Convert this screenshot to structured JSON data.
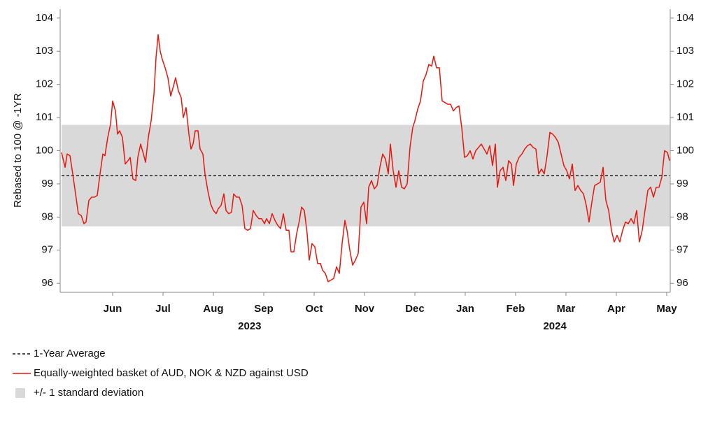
{
  "chart_data": {
    "type": "line",
    "ylabel": "Rebased to 100 @ -1YR",
    "x": [
      -0.514,
      -0.444,
      -0.403,
      -0.347,
      -0.292,
      -0.236,
      -0.181,
      -0.125,
      -0.069,
      -0.028,
      0.028,
      0.083,
      0.139,
      0.194,
      0.25,
      0.306,
      0.347,
      0.403,
      0.458,
      0.5,
      0.556,
      0.597,
      0.639,
      0.694,
      0.75,
      0.806,
      0.847,
      0.903,
      0.958,
      1,
      1.056,
      1.111,
      1.153,
      1.208,
      1.264,
      1.319,
      1.361,
      1.403,
      1.444,
      1.486,
      1.542,
      1.597,
      1.653,
      1.708,
      1.75,
      1.806,
      1.861,
      1.903,
      1.958,
      2.014,
      2.056,
      2.097,
      2.139,
      2.194,
      2.236,
      2.292,
      2.333,
      2.389,
      2.444,
      2.5,
      2.556,
      2.597,
      2.653,
      2.708,
      2.75,
      2.806,
      2.861,
      2.903,
      2.958,
      3.014,
      3.069,
      3.125,
      3.181,
      3.236,
      3.292,
      3.347,
      3.403,
      3.458,
      3.514,
      3.556,
      3.611,
      3.667,
      3.722,
      3.778,
      3.833,
      3.889,
      3.944,
      4,
      4.042,
      4.097,
      4.153,
      4.208,
      4.25,
      4.306,
      4.361,
      4.403,
      4.458,
      4.514,
      4.569,
      4.625,
      4.667,
      4.722,
      4.778,
      4.833,
      4.889,
      4.944,
      5,
      5.056,
      5.111,
      5.153,
      5.208,
      5.264,
      5.319,
      5.375,
      5.431,
      5.486,
      5.542,
      5.583,
      5.639,
      5.694,
      5.75,
      5.806,
      5.861,
      5.917,
      5.972,
      6.014,
      6.069,
      6.125,
      6.181,
      6.236,
      6.292,
      6.347,
      6.403,
      6.458,
      6.5,
      6.556,
      6.611,
      6.667,
      6.722,
      6.778,
      6.833,
      6.875,
      6.931,
      6.986,
      7.042,
      7.097,
      7.153,
      7.208,
      7.264,
      7.319,
      7.375,
      7.431,
      7.486,
      7.542,
      7.597,
      7.653,
      7.708,
      7.764,
      7.819,
      7.875,
      7.931,
      7.986,
      8.042,
      8.097,
      8.139,
      8.194,
      8.25,
      8.306,
      8.361,
      8.417,
      8.458,
      8.514,
      8.569,
      8.625,
      8.681,
      8.736,
      8.792,
      8.847,
      8.903,
      8.958,
      9.014,
      9.069,
      9.125,
      9.181,
      9.236,
      9.292,
      9.347,
      9.403,
      9.458,
      9.514,
      9.569,
      9.625,
      9.681,
      9.736,
      9.792,
      9.847,
      9.903,
      9.958,
      10.014,
      10.069,
      10.125,
      10.181,
      10.236,
      10.292,
      10.347,
      10.403,
      10.458,
      10.514,
      10.569,
      10.625,
      10.681,
      10.736,
      10.792,
      10.847,
      10.903,
      10.958,
      11.014,
      11.069,
      11.125,
      11.181,
      11.236,
      11.292,
      11.347,
      11.403,
      11.458,
      11.514,
      11.556
    ],
    "series": [
      {
        "name": "Equally-weighted basket of AUD, NOK & NZD against USD",
        "color": "#e8160c",
        "values": [
          99.95,
          99.5,
          99.9,
          99.85,
          99.3,
          98.7,
          98.1,
          98.05,
          97.8,
          97.85,
          98.5,
          98.6,
          98.6,
          98.65,
          99.3,
          99.9,
          99.85,
          100.4,
          100.8,
          101.5,
          101.2,
          100.5,
          100.6,
          100.4,
          99.6,
          99.7,
          99.8,
          99.15,
          99.1,
          99.8,
          100.2,
          99.9,
          99.65,
          100.4,
          100.9,
          101.7,
          102.8,
          103.5,
          103,
          102.75,
          102.5,
          102.2,
          101.65,
          101.95,
          102.2,
          101.8,
          101.6,
          101,
          101.3,
          100.5,
          100.05,
          100.2,
          100.6,
          100.6,
          100.05,
          99.9,
          99.3,
          98.8,
          98.4,
          98.2,
          98.1,
          98.25,
          98.35,
          98.7,
          98.2,
          98.1,
          98.15,
          98.7,
          98.6,
          98.6,
          98.35,
          97.65,
          97.6,
          97.65,
          98.2,
          98.05,
          97.95,
          97.95,
          97.8,
          97.95,
          97.8,
          98.1,
          97.9,
          97.75,
          97.65,
          98.1,
          97.6,
          97.6,
          96.95,
          96.95,
          97.5,
          97.9,
          98.3,
          98.2,
          97.5,
          96.7,
          97.2,
          97.1,
          96.6,
          96.6,
          96.4,
          96.3,
          96.05,
          96.1,
          96.15,
          96.5,
          96.3,
          97.2,
          97.9,
          97.6,
          97.0,
          96.55,
          96.7,
          96.9,
          98.3,
          98.45,
          97.8,
          98.9,
          99.1,
          98.85,
          98.95,
          99.5,
          99.9,
          99.75,
          99.3,
          100.2,
          99.4,
          98.9,
          99.4,
          98.9,
          98.85,
          99.0,
          100.1,
          100.7,
          100.9,
          101.25,
          101.5,
          102.1,
          102.3,
          102.6,
          102.55,
          102.85,
          102.5,
          102.5,
          101.5,
          101.45,
          101.4,
          101.4,
          101.2,
          101.3,
          101.35,
          100.7,
          99.8,
          99.85,
          100.0,
          99.75,
          100.0,
          100.1,
          100.2,
          100.05,
          99.9,
          100.15,
          99.55,
          100.2,
          98.9,
          99.4,
          99.5,
          99.1,
          99.7,
          99.6,
          98.95,
          99.6,
          99.8,
          99.9,
          100.05,
          100.15,
          100.2,
          100.1,
          100.05,
          99.3,
          99.45,
          99.3,
          99.85,
          100.55,
          100.5,
          100.4,
          100.25,
          99.9,
          99.55,
          99.4,
          99.15,
          99.6,
          98.8,
          98.95,
          98.8,
          98.7,
          98.35,
          97.85,
          98.45,
          98.95,
          99.0,
          99.05,
          99.5,
          98.5,
          98.2,
          97.6,
          97.25,
          97.45,
          97.25,
          97.6,
          97.85,
          97.8,
          97.95,
          97.8,
          98.2,
          97.25,
          97.6,
          98.2,
          98.8,
          98.9,
          98.6,
          98.9,
          98.9,
          99.2,
          100.0,
          99.95,
          99.7
        ]
      }
    ],
    "reference_line": {
      "name": "1-Year Average",
      "value": 99.25,
      "color": "#111111"
    },
    "band": {
      "name": "+/- 1 standard deviation",
      "lower": 97.72,
      "upper": 100.78,
      "color": "#d9d9d9"
    },
    "xlim": [
      -0.514,
      11.556
    ],
    "xticks": [
      {
        "value": 0.5,
        "label": "Jun"
      },
      {
        "value": 1.5,
        "label": "Jul"
      },
      {
        "value": 2.5,
        "label": "Aug"
      },
      {
        "value": 3.5,
        "label": "Sep"
      },
      {
        "value": 4.5,
        "label": "Oct"
      },
      {
        "value": 5.5,
        "label": "Nov"
      },
      {
        "value": 6.5,
        "label": "Dec"
      },
      {
        "value": 7.5,
        "label": "Jan"
      },
      {
        "value": 8.5,
        "label": "Feb"
      },
      {
        "value": 9.5,
        "label": "Mar"
      },
      {
        "value": 10.5,
        "label": "Apr"
      },
      {
        "value": 11.5,
        "label": "May"
      }
    ],
    "x_group_labels": [
      {
        "value": 3.22,
        "label": "2023"
      },
      {
        "value": 9.28,
        "label": "2024"
      }
    ],
    "ylim": [
      95.73,
      104.27
    ],
    "yticks": [
      96,
      97,
      98,
      99,
      100,
      101,
      102,
      103,
      104
    ],
    "y2lim": [
      95.73,
      104.27
    ],
    "y2ticks": [
      96,
      97,
      98,
      99,
      100,
      101,
      102,
      103,
      104
    ]
  }
}
